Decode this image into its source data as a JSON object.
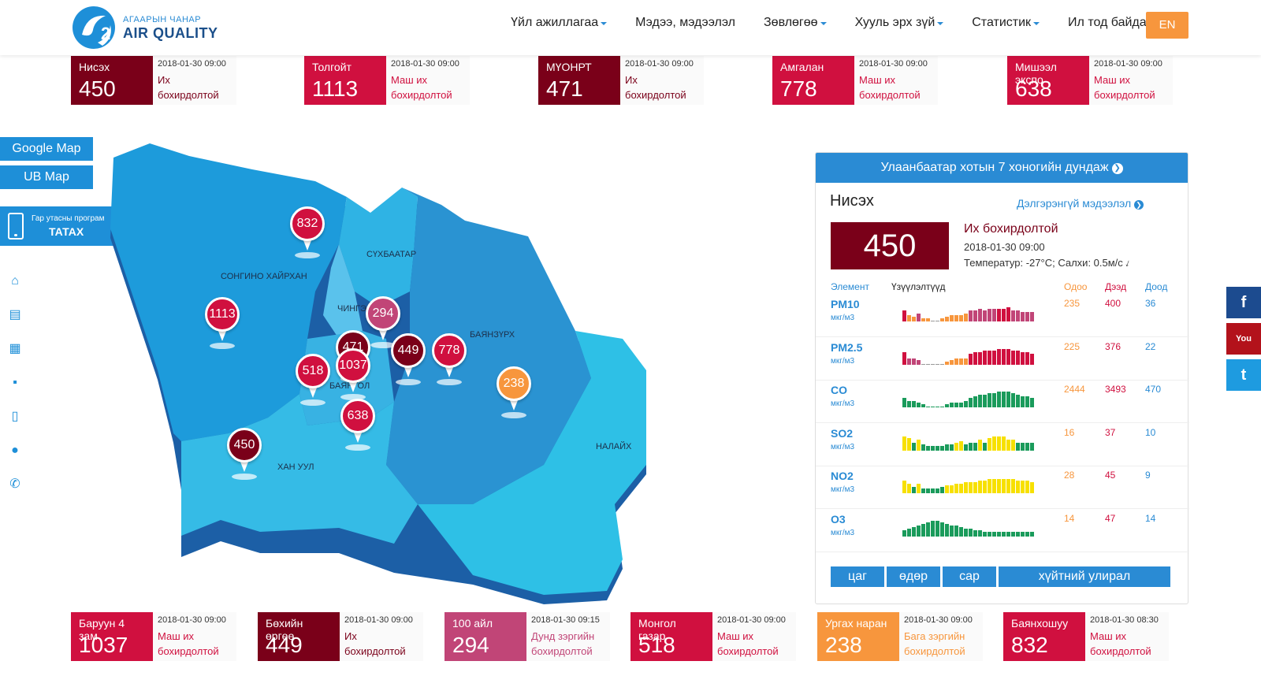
{
  "header": {
    "logo_sub": "АГААРЫН ЧАНАР",
    "logo_main": "AIR QUALITY",
    "nav": [
      {
        "label": "Үйл ажиллагаа",
        "dropdown": true
      },
      {
        "label": "Мэдээ, мэдээлэл",
        "dropdown": false
      },
      {
        "label": "Зөвлөгөө",
        "dropdown": true
      },
      {
        "label": "Хууль эрх зүй",
        "dropdown": true
      },
      {
        "label": "Статистик",
        "dropdown": true
      },
      {
        "label": "Ил тод байдал",
        "dropdown": true
      }
    ],
    "lang": "EN"
  },
  "top_cards": [
    {
      "name": "Нисэх",
      "value": "450",
      "time": "2018-01-30 09:00",
      "status": "Их бохирдолтой",
      "color": "#7a0019",
      "status_color": "#7a0019"
    },
    {
      "name": "Толгойт",
      "value": "1113",
      "time": "2018-01-30 09:00",
      "status": "Маш их бохирдолтой",
      "color": "#d0103f",
      "status_color": "#d0103f"
    },
    {
      "name": "МҮОНРТ",
      "value": "471",
      "time": "2018-01-30 09:00",
      "status": "Их бохирдолтой",
      "color": "#7a0019",
      "status_color": "#7a0019"
    },
    {
      "name": "Амгалан",
      "value": "778",
      "time": "2018-01-30 09:00",
      "status": "Маш их бохирдолтой",
      "color": "#d0103f",
      "status_color": "#d0103f"
    },
    {
      "name": "Мишээл экспо",
      "value": "638",
      "time": "2018-01-30 09:00",
      "status": "Маш их бохирдолтой",
      "color": "#d0103f",
      "status_color": "#d0103f"
    }
  ],
  "bottom_cards": [
    {
      "name": "Баруун 4 зам",
      "value": "1037",
      "time": "2018-01-30 09:00",
      "status": "Маш их бохирдолтой",
      "color": "#d0103f",
      "status_color": "#d0103f"
    },
    {
      "name": "Бөхийн өргөө",
      "value": "449",
      "time": "2018-01-30 09:00",
      "status": "Их бохирдолтой",
      "color": "#7a0019",
      "status_color": "#7a0019"
    },
    {
      "name": "100 айл",
      "value": "294",
      "time": "2018-01-30 09:15",
      "status": "Дунд зэргийн бохирдолтой",
      "color": "#c14577",
      "status_color": "#c14577"
    },
    {
      "name": "Монгол газар",
      "value": "518",
      "time": "2018-01-30 09:00",
      "status": "Маш их бохирдолтой",
      "color": "#d0103f",
      "status_color": "#d0103f"
    },
    {
      "name": "Ургах наран",
      "value": "238",
      "time": "2018-01-30 09:00",
      "status": "Бага зэргийн бохирдолтой",
      "color": "#f7963d",
      "status_color": "#f7963d"
    },
    {
      "name": "Баянхошуу",
      "value": "832",
      "time": "2018-01-30 08:30",
      "status": "Маш их бохирдолтой",
      "color": "#d0103f",
      "status_color": "#d0103f"
    }
  ],
  "sidebar": {
    "google_map": "Google Map",
    "ub_map": "UB Map",
    "app_line1": "Гар утасны програм",
    "app_line2": "ТАТАХ",
    "icons": [
      "home-icon",
      "news-icon",
      "document-icon",
      "grid-icon",
      "mobile-icon",
      "user-icon",
      "phone-icon"
    ]
  },
  "map": {
    "districts": [
      {
        "name": "СОНГИНО ХАЙРХАН"
      },
      {
        "name": "СҮХБААТАР"
      },
      {
        "name": "ЧИНГЭ"
      },
      {
        "name": "БАЯНЗҮРХ"
      },
      {
        "name": "БАЯНГОЛ"
      },
      {
        "name": "ХАН УУЛ"
      },
      {
        "name": "НАЛАЙХ"
      }
    ],
    "pins": [
      {
        "value": "832",
        "color": "#d0103f"
      },
      {
        "value": "1113",
        "color": "#d0103f"
      },
      {
        "value": "294",
        "color": "#c14577"
      },
      {
        "value": "471",
        "color": "#7a0019"
      },
      {
        "value": "449",
        "color": "#7a0019"
      },
      {
        "value": "778",
        "color": "#d0103f"
      },
      {
        "value": "518",
        "color": "#d0103f"
      },
      {
        "value": "1037",
        "color": "#d0103f"
      },
      {
        "value": "238",
        "color": "#f7963d"
      },
      {
        "value": "638",
        "color": "#d0103f"
      },
      {
        "value": "450",
        "color": "#7a0019"
      }
    ]
  },
  "panel": {
    "title": "Улаанбаатар хотын 7 хоногийн дундаж",
    "station": "Нисэх",
    "detail_link": "Дэлгэрэнгүй мэдээлэл",
    "aqi": "450",
    "status": "Их бохирдолтой",
    "time": "2018-01-30 09:00",
    "weather": "Температур: -27°C; Салхи: 0.5м/с",
    "headers": {
      "element": "Элемент",
      "trend": "Үзүүлэлтүүд",
      "now": "Одоо",
      "max": "Дээд",
      "min": "Доод"
    },
    "pollutants": [
      {
        "name": "PM10",
        "unit": "мкг/м3",
        "now": "235",
        "max": "400",
        "min": "36"
      },
      {
        "name": "PM2.5",
        "unit": "мкг/м3",
        "now": "225",
        "max": "376",
        "min": "22"
      },
      {
        "name": "CO",
        "unit": "мкг/м3",
        "now": "2444",
        "max": "3493",
        "min": "470"
      },
      {
        "name": "SO2",
        "unit": "мкг/м3",
        "now": "16",
        "max": "37",
        "min": "10"
      },
      {
        "name": "NO2",
        "unit": "мкг/м3",
        "now": "28",
        "max": "45",
        "min": "9"
      },
      {
        "name": "O3",
        "unit": "мкг/м3",
        "now": "14",
        "max": "47",
        "min": "14"
      }
    ],
    "tabs": [
      "цаг",
      "өдөр",
      "сар",
      "хүйтний улирал"
    ]
  },
  "social": [
    {
      "icon": "facebook-icon",
      "glyph": "f",
      "color": "#1c4b8f"
    },
    {
      "icon": "youtube-icon",
      "glyph": "You",
      "color": "#b3121b"
    },
    {
      "icon": "twitter-icon",
      "glyph": "t",
      "color": "#1e9be0"
    }
  ]
}
